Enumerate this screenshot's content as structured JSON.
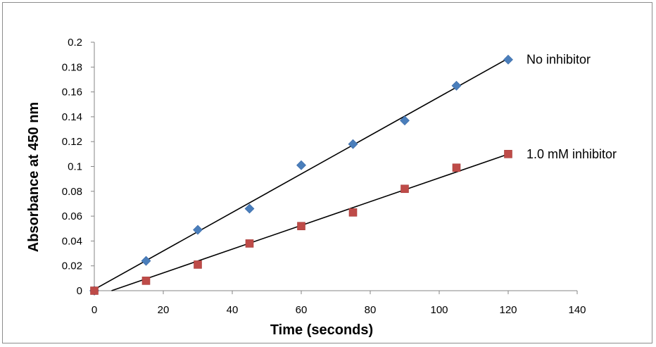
{
  "chart_data": {
    "type": "scatter",
    "xlabel": "Time (seconds)",
    "ylabel": "Absorbance at 450 nm",
    "xlim": [
      0,
      140
    ],
    "ylim": [
      0,
      0.2
    ],
    "x_ticks": [
      "0",
      "20",
      "40",
      "60",
      "80",
      "100",
      "120",
      "140"
    ],
    "y_ticks": [
      "0",
      "0.02",
      "0.04",
      "0.06",
      "0.08",
      "0.1",
      "0.12",
      "0.14",
      "0.16",
      "0.18",
      "0.2"
    ],
    "grid": false,
    "legend": "none; series labeled inline at right end of lines",
    "series": [
      {
        "name": "No inhibitor",
        "marker": "diamond",
        "color": "#4a7ebb",
        "x": [
          0,
          15,
          30,
          45,
          60,
          75,
          90,
          105,
          120
        ],
        "y": [
          0.0,
          0.024,
          0.049,
          0.066,
          0.101,
          0.118,
          0.137,
          0.165,
          0.186
        ],
        "trendline": true
      },
      {
        "name": "1.0 mM inhibitor",
        "marker": "square",
        "color": "#be4b48",
        "x": [
          0,
          15,
          30,
          45,
          60,
          75,
          90,
          105,
          120
        ],
        "y": [
          0.0,
          0.008,
          0.021,
          0.038,
          0.052,
          0.063,
          0.082,
          0.099,
          0.11
        ],
        "trendline": true
      }
    ]
  }
}
